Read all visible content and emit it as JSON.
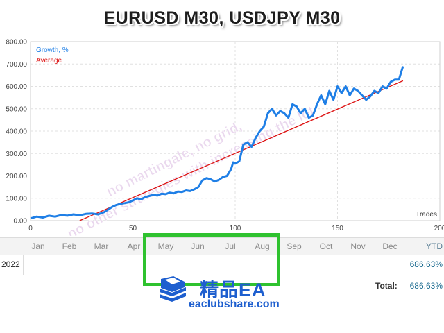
{
  "header": {
    "title": "EURUSD M30, USDJPY M30"
  },
  "legend": {
    "growth": "Growth, %",
    "average": "Average"
  },
  "axis": {
    "x_label": "Trades"
  },
  "watermark": {
    "line1": "no martingale, no grid,",
    "line2": "no other strategies with increasing the lot"
  },
  "colors": {
    "growth": "#1f7fe6",
    "average": "#dd1111",
    "highlight": "#2fc22f",
    "logo": "#1e5fcf"
  },
  "chart_data": {
    "type": "line",
    "xlabel": "Trades",
    "ylabel": "",
    "xlim": [
      0,
      200
    ],
    "ylim": [
      0,
      800
    ],
    "xticks": [
      0,
      50,
      100,
      150,
      200
    ],
    "xtick_labels": [
      "0",
      "50",
      "100",
      "150",
      "200"
    ],
    "yticks": [
      0,
      100,
      200,
      300,
      400,
      500,
      600,
      700,
      800
    ],
    "ytick_labels": [
      "0.00",
      "100.00",
      "200.00",
      "300.00",
      "400.00",
      "500.00",
      "600.00",
      "700.00",
      "800.00"
    ],
    "grid": true,
    "legend_position": "top-left",
    "series": [
      {
        "name": "Growth, %",
        "x": [
          0,
          3,
          6,
          9,
          12,
          15,
          18,
          21,
          24,
          27,
          30,
          33,
          36,
          38,
          40,
          42,
          44,
          46,
          48,
          50,
          52,
          54,
          56,
          58,
          60,
          62,
          64,
          66,
          68,
          70,
          72,
          74,
          76,
          78,
          80,
          82,
          84,
          86,
          88,
          90,
          92,
          94,
          96,
          98,
          99,
          100,
          102,
          104,
          106,
          108,
          110,
          112,
          114,
          116,
          118,
          120,
          122,
          124,
          126,
          128,
          130,
          132,
          134,
          136,
          138,
          140,
          142,
          144,
          146,
          148,
          150,
          152,
          154,
          156,
          158,
          160,
          162,
          164,
          166,
          168,
          170,
          172,
          174,
          176,
          178,
          180,
          182
        ],
        "values": [
          10,
          18,
          14,
          22,
          18,
          25,
          22,
          28,
          24,
          30,
          32,
          28,
          38,
          50,
          62,
          70,
          75,
          78,
          82,
          90,
          100,
          95,
          105,
          110,
          115,
          112,
          120,
          118,
          125,
          122,
          130,
          128,
          135,
          132,
          140,
          150,
          180,
          190,
          185,
          175,
          182,
          195,
          200,
          230,
          260,
          255,
          265,
          340,
          350,
          330,
          370,
          400,
          420,
          480,
          500,
          470,
          490,
          480,
          460,
          520,
          510,
          480,
          500,
          460,
          470,
          520,
          560,
          520,
          580,
          540,
          600,
          570,
          600,
          560,
          590,
          580,
          560,
          540,
          555,
          580,
          570,
          600,
          590,
          620,
          630,
          630,
          690
        ]
      },
      {
        "name": "Average",
        "x": [
          24,
          182
        ],
        "values": [
          0,
          625
        ]
      }
    ]
  },
  "monthly": {
    "months": [
      "Jan",
      "Feb",
      "Mar",
      "Apr",
      "May",
      "Jun",
      "Jul",
      "Aug",
      "Sep",
      "Oct",
      "Nov",
      "Dec"
    ],
    "ytd_header": "YTD",
    "year": "2022",
    "ytd_value": "686.63%",
    "total_label": "Total:",
    "total_value": "686.63%"
  },
  "logo": {
    "name": "精品EA",
    "url": "eaclubshare.com",
    "icon": "book-stack-icon"
  }
}
